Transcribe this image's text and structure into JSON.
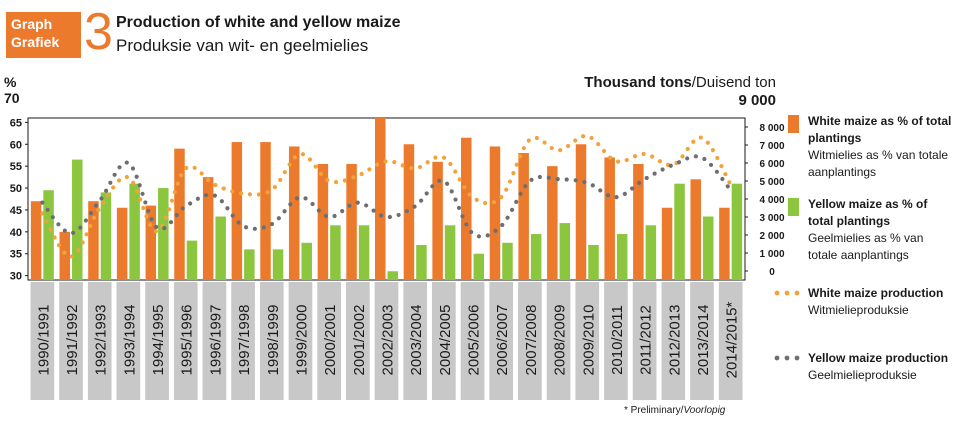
{
  "header": {
    "badge_en": "Graph",
    "badge_af": "Grafiek",
    "number": "3",
    "title_en": "Production of white and yellow maize",
    "title_af": "Produksie van wit- en geelmielies"
  },
  "left_axis": {
    "unit": "%",
    "top_label": "70"
  },
  "right_axis": {
    "unit_en": "Thousand tons",
    "unit_af": "/Duisend ton",
    "top_label": "9 000"
  },
  "footnote": {
    "en": "* Preliminary/",
    "af": "Voorlopig"
  },
  "legend": [
    {
      "bold": "White maize as % of total plantings",
      "normal": "Witmielies as % van totale aanplantings",
      "color": "#ec7a2c"
    },
    {
      "bold": "Yellow maize as % of total plantings",
      "normal": "Geelmielies as % van totale aanplantings",
      "color": "#8cc63f"
    },
    {
      "bold": "White maize production",
      "normal": "Witmielieproduksie",
      "color": "#f3a23a"
    },
    {
      "bold": "Yellow maize production",
      "normal": "Geelmielieproduksie",
      "color": "#6d6e71"
    }
  ],
  "chart_data": {
    "type": "bar+line",
    "categories": [
      "1990/1991",
      "1991/1992",
      "1992/1993",
      "1993/1994",
      "1994/1995",
      "1995/1996",
      "1996/1997",
      "1997/1998",
      "1998/1999",
      "1999/2000",
      "2000/2001",
      "2001/2002",
      "2002/2003",
      "2003/2004",
      "2004/2005",
      "2005/2006",
      "2006/2007",
      "2007/2008",
      "2008/2009",
      "2009/2010",
      "2010/2011",
      "2011/2012",
      "2012/2013",
      "2013/2014",
      "2014/2015*"
    ],
    "left_axis": {
      "ticks": [
        30,
        35,
        40,
        45,
        50,
        55,
        60,
        65
      ],
      "ylim": [
        29,
        66
      ]
    },
    "right_axis": {
      "ticks": [
        0,
        1000,
        2000,
        3000,
        4000,
        5000,
        6000,
        7000,
        8000
      ],
      "tick_labels": [
        "0",
        "1 000",
        "2 000",
        "3 000",
        "4 000",
        "5 000",
        "6 000",
        "7 000",
        "8 000"
      ],
      "ylim": [
        -500,
        8500
      ]
    },
    "series": [
      {
        "name": "White maize as % of total plantings",
        "axis": "left",
        "kind": "bar",
        "color": "#ec7a2c",
        "values": [
          47,
          40,
          47,
          45.5,
          46,
          59,
          52.5,
          60.5,
          60.5,
          59.5,
          55.5,
          55.5,
          66,
          60,
          56,
          61.5,
          59.5,
          58,
          55,
          60,
          57,
          55.5,
          45.5,
          52,
          45.5
        ]
      },
      {
        "name": "Yellow maize as % of total plantings",
        "axis": "left",
        "kind": "bar",
        "color": "#8cc63f",
        "values": [
          49.5,
          56.5,
          49,
          51,
          50,
          38,
          43.5,
          36,
          36,
          37.5,
          41.5,
          41.5,
          31,
          37,
          41.5,
          35,
          37.5,
          39.5,
          42,
          37,
          39.5,
          41.5,
          51,
          43.5,
          51
        ]
      },
      {
        "name": "White maize production",
        "axis": "right",
        "kind": "dotted-line",
        "color": "#f3a23a",
        "values": [
          3200,
          800,
          3500,
          5200,
          2200,
          5700,
          4800,
          4300,
          4500,
          6500,
          5000,
          5300,
          6100,
          5700,
          6300,
          4100,
          4100,
          7300,
          6700,
          7500,
          6100,
          6500,
          5900,
          7400,
          4800
        ]
      },
      {
        "name": "Yellow maize production",
        "axis": "right",
        "kind": "dotted-line",
        "color": "#6d6e71",
        "values": [
          3800,
          2100,
          3900,
          6000,
          2400,
          3600,
          4200,
          2500,
          2600,
          4100,
          3000,
          3800,
          3000,
          3600,
          5000,
          2100,
          2500,
          5000,
          5100,
          4900,
          4100,
          5100,
          5900,
          6300,
          4500
        ]
      }
    ]
  }
}
